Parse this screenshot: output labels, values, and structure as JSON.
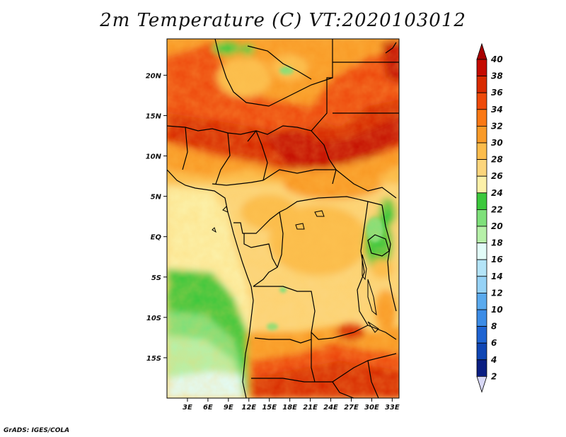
{
  "title": "2m Temperature (C) VT:2020103012",
  "footer": "GrADS: IGES/COLA",
  "map": {
    "lon_range": [
      0,
      34
    ],
    "lat_range": [
      -20,
      24.5
    ],
    "lon_ticks": [
      "3E",
      "6E",
      "9E",
      "12E",
      "15E",
      "18E",
      "21E",
      "24E",
      "27E",
      "30E",
      "33E"
    ],
    "lat_ticks": [
      "20N",
      "15N",
      "10N",
      "5N",
      "EQ",
      "5S",
      "10S",
      "15S"
    ]
  },
  "colorbar": {
    "labels": [
      "40",
      "38",
      "36",
      "34",
      "32",
      "30",
      "28",
      "26",
      "24",
      "22",
      "20",
      "18",
      "16",
      "14",
      "12",
      "10",
      "8",
      "6",
      "4",
      "2"
    ],
    "colors": {
      "above_40": "#a80000",
      "38-40": "#c40a00",
      "36-38": "#d82a00",
      "34-36": "#ee4a0a",
      "32-34": "#fa7814",
      "30-32": "#f99a28",
      "28-30": "#fbbc4c",
      "26-28": "#fcd57c",
      "24-26": "#fcf0a8",
      "22-24": "#3cc83c",
      "20-22": "#7ee07a",
      "18-20": "#b6f0a8",
      "16-18": "#e2fcf8",
      "14-16": "#b4e4f8",
      "12-14": "#96d2f6",
      "10-12": "#5aaaee",
      "8-10": "#3c8ce6",
      "6-8": "#1e64d2",
      "4-6": "#0f46b4",
      "2-4": "#0a1e82",
      "below_2": "#d8d8f6"
    }
  }
}
